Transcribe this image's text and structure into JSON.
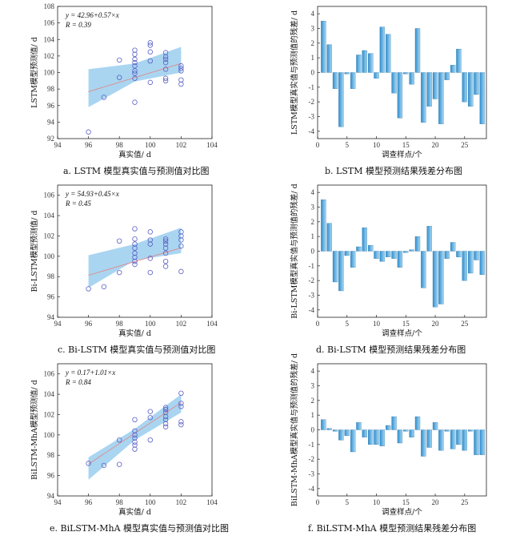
{
  "chart_data": [
    {
      "id": "a",
      "type": "scatter",
      "caption": "a. LSTM 模型真实值与预测值对比图",
      "xlabel": "真实值/ d",
      "ylabel": "LSTM模型预测值/ d",
      "eq_line1": "y = 42.96+0.57×x",
      "eq_line2": "R = 0.39",
      "xlim": [
        94,
        104
      ],
      "ylim": [
        92,
        108
      ],
      "xticks": [
        94,
        96,
        98,
        100,
        102,
        104
      ],
      "yticks": [
        92,
        94,
        96,
        98,
        100,
        102,
        104,
        106,
        108
      ],
      "fit": {
        "intercept": 42.96,
        "slope": 0.57,
        "x_range": [
          96,
          102
        ]
      },
      "band": {
        "x": [
          96,
          99,
          102
        ],
        "low": [
          95.8,
          98.9,
          100.0
        ],
        "high": [
          100.4,
          101.1,
          103.1
        ]
      },
      "points": [
        [
          96,
          92.8
        ],
        [
          97,
          97.0
        ],
        [
          98,
          99.4
        ],
        [
          98,
          101.5
        ],
        [
          99,
          96.4
        ],
        [
          99,
          99.3
        ],
        [
          99,
          99.9
        ],
        [
          99,
          100.2
        ],
        [
          99,
          100.8
        ],
        [
          99,
          101.2
        ],
        [
          99,
          101.6
        ],
        [
          99,
          102.2
        ],
        [
          99,
          102.7
        ],
        [
          100,
          98.8
        ],
        [
          100,
          101.4
        ],
        [
          100,
          102.5
        ],
        [
          100,
          103.3
        ],
        [
          100,
          103.6
        ],
        [
          101,
          99.0
        ],
        [
          101,
          99.3
        ],
        [
          101,
          100.4
        ],
        [
          101,
          101.2
        ],
        [
          101,
          101.6
        ],
        [
          101,
          101.9
        ],
        [
          101,
          102.4
        ],
        [
          102,
          98.6
        ],
        [
          102,
          99.1
        ],
        [
          102,
          100.2
        ],
        [
          102,
          100.5
        ],
        [
          102,
          100.8
        ]
      ]
    },
    {
      "id": "b",
      "type": "bar",
      "caption": "b. LSTM 模型预测结果残差分布图",
      "xlabel": "调查样点/个",
      "ylabel": "LSTM模型真实值与预测值的残差/ d",
      "xlim": [
        0,
        28.7
      ],
      "ylim": [
        -4.5,
        4.5
      ],
      "xticks": [
        0,
        5,
        10,
        15,
        20,
        25
      ],
      "yticks": [
        -4,
        -3,
        -2,
        -1,
        0,
        1,
        2,
        3,
        4
      ],
      "values": [
        3.5,
        1.9,
        -1.1,
        -3.7,
        -0.1,
        -1.1,
        1.2,
        1.5,
        1.3,
        -0.4,
        3.1,
        2.6,
        -1.4,
        -3.1,
        -0.1,
        -0.8,
        3.0,
        -3.4,
        -2.3,
        -1.8,
        -3.5,
        -0.5,
        0.5,
        1.6,
        -2.0,
        -2.3,
        -1.5,
        -3.5
      ]
    },
    {
      "id": "c",
      "type": "scatter",
      "caption": "c. Bi-LSTM 模型真实值与预测值对比图",
      "xlabel": "真实值/ d",
      "ylabel": "Bi-LSTM模型预测值/ d",
      "eq_line1": "y = 54.93+0.45×x",
      "eq_line2": "R = 0.45",
      "xlim": [
        94,
        104
      ],
      "ylim": [
        94,
        107
      ],
      "xticks": [
        94,
        96,
        98,
        100,
        102,
        104
      ],
      "yticks": [
        94,
        96,
        98,
        100,
        102,
        104,
        106
      ],
      "fit": {
        "intercept": 54.93,
        "slope": 0.45,
        "x_range": [
          96,
          102
        ]
      },
      "band": {
        "x": [
          96,
          99,
          102
        ],
        "low": [
          96.9,
          99.6,
          100.3
        ],
        "high": [
          100.1,
          101.2,
          102.8
        ]
      },
      "points": [
        [
          96,
          96.8
        ],
        [
          97,
          97.0
        ],
        [
          98,
          98.4
        ],
        [
          98,
          101.5
        ],
        [
          99,
          99.2
        ],
        [
          99,
          99.5
        ],
        [
          99,
          99.9
        ],
        [
          99,
          100.3
        ],
        [
          99,
          100.8
        ],
        [
          99,
          101.2
        ],
        [
          99,
          101.7
        ],
        [
          99,
          102.7
        ],
        [
          100,
          98.4
        ],
        [
          100,
          99.8
        ],
        [
          100,
          101.2
        ],
        [
          100,
          101.6
        ],
        [
          100,
          102.4
        ],
        [
          101,
          99.0
        ],
        [
          101,
          99.5
        ],
        [
          101,
          100.3
        ],
        [
          101,
          100.8
        ],
        [
          101,
          101.2
        ],
        [
          101,
          101.5
        ],
        [
          101,
          101.7
        ],
        [
          102,
          98.5
        ],
        [
          102,
          101.0
        ],
        [
          102,
          101.6
        ],
        [
          102,
          102.0
        ],
        [
          102,
          102.4
        ]
      ]
    },
    {
      "id": "d",
      "type": "bar",
      "caption": "d. Bi-LSTM 模型预测结果残差分布图",
      "xlabel": "调查样点/个",
      "ylabel": "Bi-LSTM模型真实值与预测值的残差/ d",
      "xlim": [
        0,
        28.7
      ],
      "ylim": [
        -4.5,
        4.5
      ],
      "xticks": [
        0,
        5,
        10,
        15,
        20,
        25
      ],
      "yticks": [
        -4,
        -3,
        -2,
        -1,
        0,
        1,
        2,
        3,
        4
      ],
      "values": [
        3.5,
        1.9,
        -2.1,
        -2.7,
        -0.3,
        -1.1,
        0.3,
        1.6,
        0.4,
        -0.5,
        -0.7,
        -0.4,
        -0.5,
        -1.1,
        -0.1,
        0.1,
        1.0,
        -2.5,
        1.7,
        -3.8,
        -3.6,
        -0.5,
        0.6,
        -0.4,
        -2.0,
        -1.5,
        -0.6,
        -1.6
      ]
    },
    {
      "id": "e",
      "type": "scatter",
      "caption": "e. BiLSTM-MhA 模型真实值与预测值对比图",
      "xlabel": "真实值/ d",
      "ylabel": "BiLSTM-MhA模型预测值/ d",
      "eq_line1": "y = 0.17+1.01×x",
      "eq_line2": "R = 0.84",
      "xlim": [
        94,
        104
      ],
      "ylim": [
        94,
        107
      ],
      "xticks": [
        94,
        96,
        98,
        100,
        102,
        104
      ],
      "yticks": [
        94,
        96,
        98,
        100,
        102,
        104,
        106
      ],
      "fit": {
        "intercept": 0.17,
        "slope": 1.01,
        "x_range": [
          96,
          102
        ]
      },
      "band": {
        "x": [
          96,
          99,
          102
        ],
        "low": [
          95.6,
          99.5,
          102.2
        ],
        "high": [
          97.8,
          100.6,
          104.0
        ]
      },
      "points": [
        [
          96,
          97.2
        ],
        [
          97,
          97.0
        ],
        [
          98,
          97.1
        ],
        [
          98,
          99.5
        ],
        [
          99,
          98.6
        ],
        [
          99,
          99.0
        ],
        [
          99,
          99.3
        ],
        [
          99,
          99.7
        ],
        [
          99,
          100.0
        ],
        [
          99,
          100.4
        ],
        [
          99,
          101.5
        ],
        [
          100,
          99.5
        ],
        [
          100,
          101.7
        ],
        [
          100,
          102.3
        ],
        [
          101,
          100.8
        ],
        [
          101,
          101.1
        ],
        [
          101,
          101.5
        ],
        [
          101,
          101.8
        ],
        [
          101,
          102.2
        ],
        [
          101,
          102.5
        ],
        [
          101,
          102.7
        ],
        [
          102,
          101.0
        ],
        [
          102,
          101.3
        ],
        [
          102,
          102.8
        ],
        [
          102,
          103.1
        ],
        [
          102,
          104.1
        ]
      ]
    },
    {
      "id": "f",
      "type": "bar",
      "caption": "f. BiLSTM-MhA 模型预测结果残差分布图",
      "xlabel": "调查样点/个",
      "ylabel": "BiLSTM-MhA模型真实值与预测值的残差/ d",
      "xlim": [
        0,
        28.7
      ],
      "ylim": [
        -4.5,
        4.5
      ],
      "xticks": [
        0,
        5,
        10,
        15,
        20,
        25
      ],
      "yticks": [
        -4,
        -3,
        -2,
        -1,
        0,
        1,
        2,
        3,
        4
      ],
      "values": [
        0.7,
        0.1,
        -0.1,
        -0.7,
        -0.4,
        -1.5,
        0.5,
        -0.5,
        -1.0,
        -1.0,
        -1.1,
        0.3,
        0.9,
        -0.9,
        -0.1,
        -0.5,
        0.9,
        -1.8,
        -1.2,
        0.5,
        -1.4,
        -0.1,
        -1.3,
        -1.0,
        -1.4,
        -0.1,
        -1.7,
        -1.7
      ]
    }
  ]
}
